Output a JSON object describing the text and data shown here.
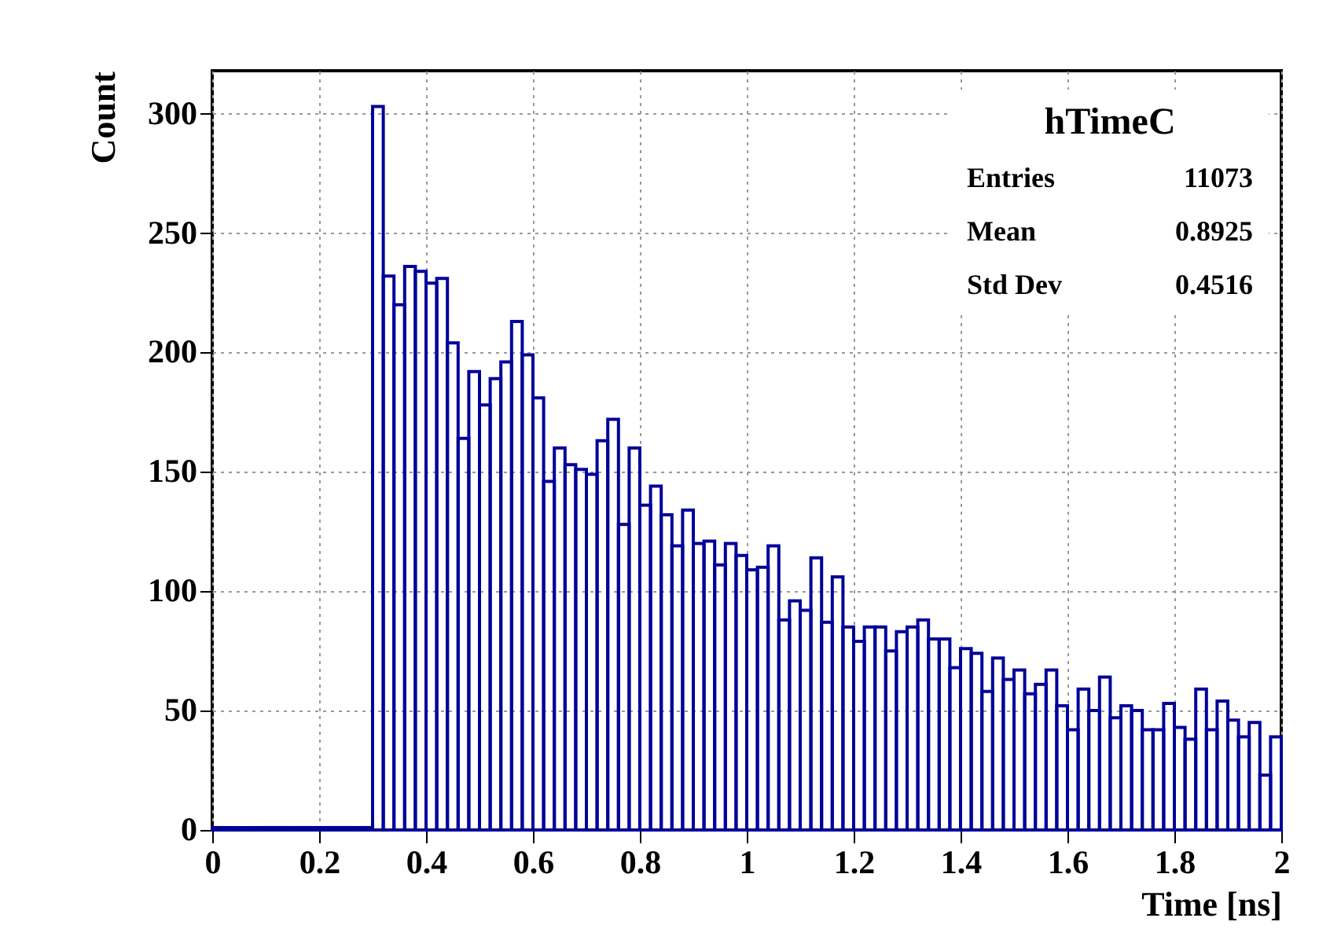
{
  "chart_data": {
    "type": "histogram",
    "xlabel": "Time [ns]",
    "ylabel": "Count",
    "bins": [
      0,
      0.02,
      0.04,
      0.06,
      0.08,
      0.1,
      0.12,
      0.14,
      0.16,
      0.18,
      0.2,
      0.22,
      0.24,
      0.26,
      0.28,
      0.3,
      0.32,
      0.34,
      0.36,
      0.38,
      0.4,
      0.42,
      0.44,
      0.46,
      0.48,
      0.5,
      0.52,
      0.54,
      0.56,
      0.58,
      0.6,
      0.62,
      0.64,
      0.66,
      0.68,
      0.7,
      0.72,
      0.74,
      0.76,
      0.78,
      0.8,
      0.82,
      0.84,
      0.86,
      0.88,
      0.9,
      0.92,
      0.94,
      0.96,
      0.98,
      1,
      1.02,
      1.04,
      1.06,
      1.08,
      1.1,
      1.12,
      1.14,
      1.16,
      1.18,
      1.2,
      1.22,
      1.24,
      1.26,
      1.28,
      1.3,
      1.32,
      1.34,
      1.36,
      1.38,
      1.4,
      1.42,
      1.44,
      1.46,
      1.48,
      1.5,
      1.52,
      1.54,
      1.56,
      1.58,
      1.6,
      1.62,
      1.64,
      1.66,
      1.68,
      1.7,
      1.72,
      1.74,
      1.76,
      1.78,
      1.8,
      1.82,
      1.84,
      1.86,
      1.88,
      1.9,
      1.92,
      1.94,
      1.96,
      1.98,
      2
    ],
    "values": [
      1,
      1,
      1,
      1,
      1,
      1,
      1,
      1,
      1,
      1,
      1,
      1,
      1,
      1,
      1,
      303,
      232,
      220,
      236,
      234,
      229,
      231,
      204,
      164,
      192,
      178,
      189,
      196,
      213,
      199,
      181,
      146,
      160,
      153,
      151,
      149,
      163,
      172,
      128,
      160,
      136,
      144,
      132,
      119,
      134,
      120,
      121,
      111,
      120,
      115,
      109,
      110,
      119,
      88,
      96,
      92,
      114,
      87,
      106,
      85,
      79,
      85,
      85,
      75,
      83,
      85,
      88,
      80,
      80,
      68,
      76,
      74,
      58,
      72,
      63,
      67,
      57,
      61,
      67,
      52,
      42,
      59,
      50,
      64,
      47,
      52,
      50,
      42,
      42,
      53,
      43,
      38,
      59,
      42,
      54,
      46,
      39,
      45,
      23,
      39
    ],
    "color": "#000099",
    "xlim": [
      0,
      2
    ],
    "xticks": [
      0,
      0.2,
      0.4,
      0.6,
      0.8,
      1,
      1.2,
      1.4,
      1.6,
      1.8,
      2
    ],
    "ylim": [
      0,
      318
    ],
    "yticks": [
      0,
      50,
      100,
      150,
      200,
      250,
      300
    ],
    "grid": true,
    "annotations": [
      "hTimeC",
      "Entries",
      "11073",
      "Mean",
      "0.8925",
      "Std Dev",
      "0.4516"
    ]
  }
}
